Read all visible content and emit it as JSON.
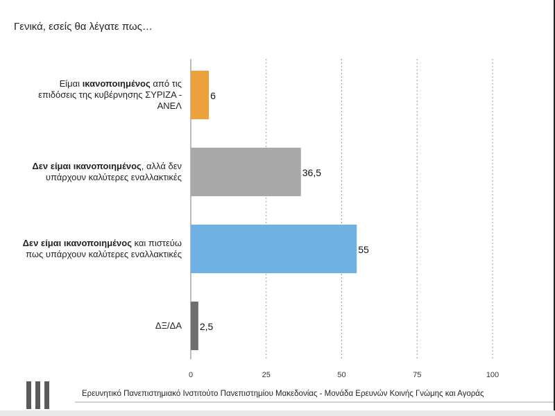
{
  "page": {
    "title": "Γενικά, εσείς θα λέγατε πως…",
    "footer": "Ερευνητικό Πανεπιστημιακό Ινστιτούτο Πανεπιστημίου Μακεδονίας - Μονάδα Ερευνών Κοινής Γνώμης και Αγοράς"
  },
  "categories": [
    {
      "bold": "",
      "pre": "Είμαι ",
      "strong": "ικανοποιημένος",
      "post": " από τις επιδόσεις  της κυβέρνησης ΣΥΡΙΖΑ - ΑΝΕΛ"
    },
    {
      "pre": "",
      "strong": "Δεν είμαι ικανοποιημένος",
      "post": ", αλλά δεν υπάρχουν καλύτερες εναλλακτικές"
    },
    {
      "pre": "",
      "strong": "Δεν είμαι ικανοποιημένος",
      "post": " και πιστεύω πως υπάρχουν καλύτερες εναλλακτικές"
    },
    {
      "pre": "ΔΞ/ΔΑ",
      "strong": "",
      "post": ""
    }
  ],
  "chart_data": {
    "type": "bar",
    "orientation": "horizontal",
    "categories": [
      "Είμαι ικανοποιημένος από τις επιδόσεις  της κυβέρνησης ΣΥΡΙΖΑ - ΑΝΕΛ",
      "Δεν είμαι ικανοποιημένος, αλλά δεν υπάρχουν καλύτερες εναλλακτικές",
      "Δεν είμαι ικανοποιημένος και πιστεύω πως υπάρχουν καλύτερες εναλλακτικές",
      "ΔΞ/ΔΑ"
    ],
    "values": [
      6,
      36.5,
      55,
      2.5
    ],
    "value_labels": [
      "6",
      "36,5",
      "55",
      "2,5"
    ],
    "colors": [
      "#EBA23C",
      "#A9A9A9",
      "#6DB2E3",
      "#6E6E6E"
    ],
    "xlim": [
      0,
      100
    ],
    "xticks": [
      0,
      25,
      50,
      75,
      100
    ],
    "grid": "vertical dotted",
    "legend": "none"
  }
}
